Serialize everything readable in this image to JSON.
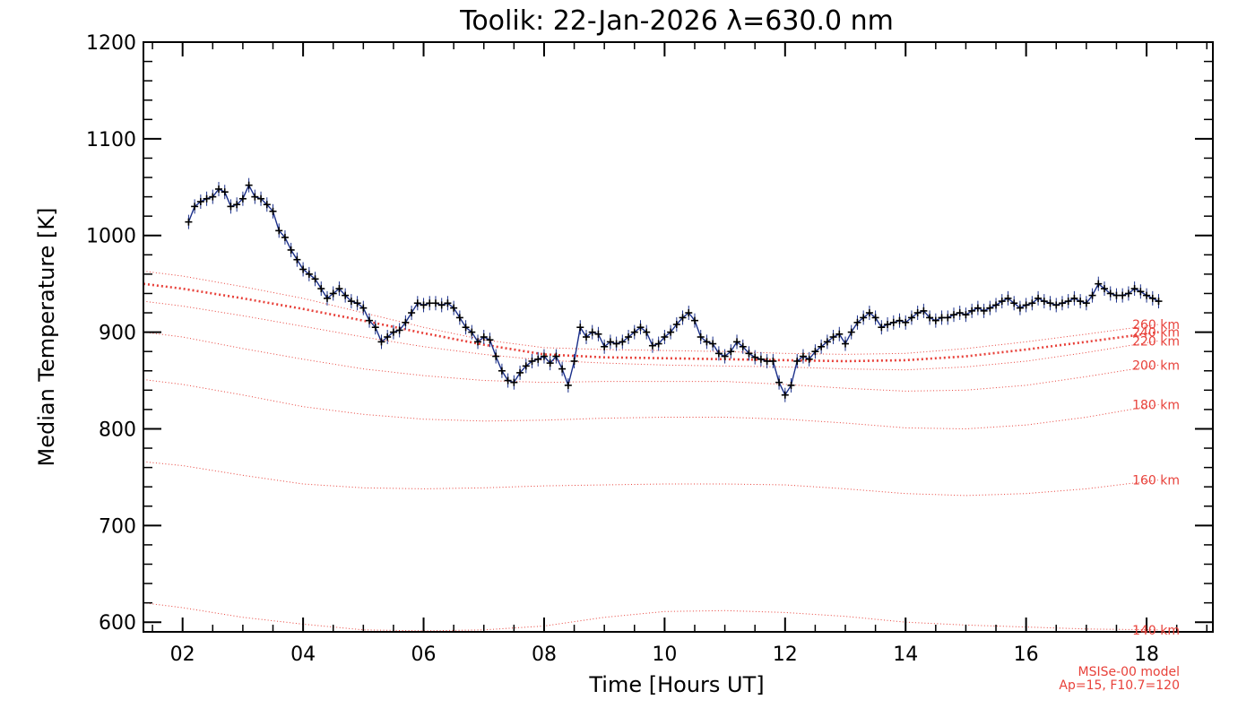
{
  "chart_data": {
    "type": "line",
    "title": "Toolik: 22-Jan-2026 λ=630.0 nm",
    "xlabel": "Time [Hours UT]",
    "ylabel": "Median Temperature [K]",
    "xlim": [
      1.35,
      19.1
    ],
    "ylim": [
      590,
      1200
    ],
    "xticks": [
      2,
      4,
      6,
      8,
      10,
      12,
      14,
      16,
      18
    ],
    "xtick_labels": [
      "02",
      "04",
      "06",
      "08",
      "10",
      "12",
      "14",
      "16",
      "18"
    ],
    "yticks": [
      600,
      700,
      800,
      900,
      1000,
      1100,
      1200
    ],
    "ytick_labels": [
      "600",
      "700",
      "800",
      "900",
      "1000",
      "1100",
      "1200"
    ],
    "grid": false,
    "colors": {
      "measured": "#1a2f8a",
      "marker": "#000000",
      "model": "#e8413a",
      "axis": "#000000"
    },
    "measured": {
      "x": [
        2.1,
        2.2,
        2.3,
        2.4,
        2.5,
        2.6,
        2.7,
        2.8,
        2.9,
        3.0,
        3.1,
        3.2,
        3.3,
        3.4,
        3.5,
        3.6,
        3.7,
        3.8,
        3.9,
        4.0,
        4.1,
        4.2,
        4.3,
        4.4,
        4.5,
        4.6,
        4.7,
        4.8,
        4.9,
        5.0,
        5.1,
        5.2,
        5.3,
        5.4,
        5.5,
        5.6,
        5.7,
        5.8,
        5.9,
        6.0,
        6.1,
        6.2,
        6.3,
        6.4,
        6.5,
        6.6,
        6.7,
        6.8,
        6.9,
        7.0,
        7.1,
        7.2,
        7.3,
        7.4,
        7.5,
        7.6,
        7.7,
        7.8,
        7.9,
        8.0,
        8.1,
        8.2,
        8.3,
        8.4,
        8.5,
        8.6,
        8.7,
        8.8,
        8.9,
        9.0,
        9.1,
        9.2,
        9.3,
        9.4,
        9.5,
        9.6,
        9.7,
        9.8,
        9.9,
        10.0,
        10.1,
        10.2,
        10.3,
        10.4,
        10.5,
        10.6,
        10.7,
        10.8,
        10.9,
        11.0,
        11.1,
        11.2,
        11.3,
        11.4,
        11.5,
        11.6,
        11.7,
        11.8,
        11.9,
        12.0,
        12.1,
        12.2,
        12.3,
        12.4,
        12.5,
        12.6,
        12.7,
        12.8,
        12.9,
        13.0,
        13.1,
        13.2,
        13.3,
        13.4,
        13.5,
        13.6,
        13.7,
        13.8,
        13.9,
        14.0,
        14.1,
        14.2,
        14.3,
        14.4,
        14.5,
        14.6,
        14.7,
        14.8,
        14.9,
        15.0,
        15.1,
        15.2,
        15.3,
        15.4,
        15.5,
        15.6,
        15.7,
        15.8,
        15.9,
        16.0,
        16.1,
        16.2,
        16.3,
        16.4,
        16.5,
        16.6,
        16.7,
        16.8,
        16.9,
        17.0,
        17.1,
        17.2,
        17.3,
        17.4,
        17.5,
        17.6,
        17.7,
        17.8,
        17.9,
        18.0,
        18.1,
        18.2
      ],
      "y": [
        1014,
        1030,
        1035,
        1038,
        1040,
        1048,
        1045,
        1030,
        1032,
        1038,
        1052,
        1040,
        1038,
        1032,
        1025,
        1005,
        998,
        985,
        975,
        965,
        960,
        955,
        945,
        935,
        940,
        945,
        938,
        932,
        930,
        925,
        912,
        905,
        890,
        895,
        900,
        902,
        910,
        920,
        930,
        928,
        930,
        930,
        928,
        930,
        925,
        915,
        905,
        900,
        890,
        895,
        892,
        875,
        860,
        850,
        848,
        858,
        865,
        870,
        872,
        875,
        868,
        875,
        862,
        845,
        870,
        905,
        895,
        900,
        898,
        885,
        890,
        888,
        890,
        895,
        900,
        905,
        900,
        886,
        888,
        895,
        900,
        908,
        915,
        920,
        912,
        895,
        890,
        888,
        878,
        875,
        880,
        890,
        885,
        878,
        874,
        872,
        870,
        870,
        848,
        835,
        845,
        870,
        875,
        872,
        880,
        885,
        890,
        895,
        898,
        888,
        900,
        910,
        915,
        920,
        915,
        905,
        908,
        910,
        912,
        910,
        915,
        920,
        922,
        915,
        912,
        915,
        915,
        918,
        920,
        918,
        922,
        925,
        922,
        925,
        928,
        932,
        935,
        930,
        925,
        928,
        930,
        935,
        932,
        930,
        928,
        930,
        932,
        935,
        932,
        930,
        938,
        950,
        945,
        940,
        938,
        938,
        940,
        945,
        942,
        938,
        935,
        932
      ]
    },
    "model_name": "MSISe-00 model",
    "model_params": "Ap=15, F10.7=120",
    "model_curves": [
      {
        "label": "140 km",
        "x": [
          1.35,
          2,
          3,
          4,
          5,
          6,
          7,
          8,
          9,
          10,
          11,
          12,
          13,
          14,
          15,
          16,
          17,
          18.2
        ],
        "y": [
          620,
          615,
          605,
          598,
          592,
          591,
          592,
          596,
          605,
          611,
          612,
          610,
          606,
          600,
          597,
          595,
          593,
          592
        ],
        "bold": false
      },
      {
        "label": "160 km",
        "x": [
          1.35,
          2,
          3,
          4,
          5,
          6,
          7,
          8,
          9,
          10,
          11,
          12,
          13,
          14,
          15,
          16,
          17,
          18.2
        ],
        "y": [
          766,
          762,
          752,
          743,
          739,
          738,
          739,
          741,
          742,
          743,
          743,
          742,
          738,
          733,
          731,
          733,
          738,
          747
        ],
        "bold": false
      },
      {
        "label": "180 km",
        "x": [
          1.35,
          2,
          3,
          4,
          5,
          6,
          7,
          8,
          9,
          10,
          11,
          12,
          13,
          14,
          15,
          16,
          17,
          18.2
        ],
        "y": [
          851,
          846,
          835,
          823,
          815,
          810,
          808,
          809,
          811,
          812,
          812,
          810,
          806,
          801,
          800,
          804,
          812,
          825
        ],
        "bold": false
      },
      {
        "label": "200 km",
        "x": [
          1.35,
          2,
          3,
          4,
          5,
          6,
          7,
          8,
          9,
          10,
          11,
          12,
          13,
          14,
          15,
          16,
          17,
          18.2
        ],
        "y": [
          900,
          895,
          883,
          872,
          862,
          855,
          850,
          848,
          849,
          849,
          849,
          846,
          842,
          839,
          840,
          845,
          854,
          866
        ],
        "bold": false
      },
      {
        "label": "220 km",
        "x": [
          1.35,
          2,
          3,
          4,
          5,
          6,
          7,
          8,
          9,
          10,
          11,
          12,
          13,
          14,
          15,
          16,
          17,
          18.2
        ],
        "y": [
          932,
          927,
          917,
          906,
          895,
          885,
          877,
          871,
          868,
          866,
          865,
          864,
          862,
          861,
          864,
          870,
          879,
          891
        ],
        "bold": false
      },
      {
        "label": "240 km",
        "x": [
          1.35,
          2,
          3,
          4,
          5,
          6,
          7,
          8,
          9,
          10,
          11,
          12,
          13,
          14,
          15,
          16,
          17,
          18.2
        ],
        "y": [
          950,
          945,
          935,
          924,
          912,
          899,
          887,
          877,
          874,
          873,
          872,
          871,
          870,
          871,
          875,
          882,
          890,
          900
        ],
        "bold": true
      },
      {
        "label": "260 km",
        "x": [
          1.35,
          2,
          3,
          4,
          5,
          6,
          7,
          8,
          9,
          10,
          11,
          12,
          13,
          14,
          15,
          16,
          17,
          18.2
        ],
        "y": [
          963,
          958,
          947,
          935,
          920,
          905,
          892,
          884,
          882,
          881,
          880,
          878,
          877,
          878,
          883,
          890,
          898,
          908
        ],
        "bold": false
      }
    ]
  }
}
